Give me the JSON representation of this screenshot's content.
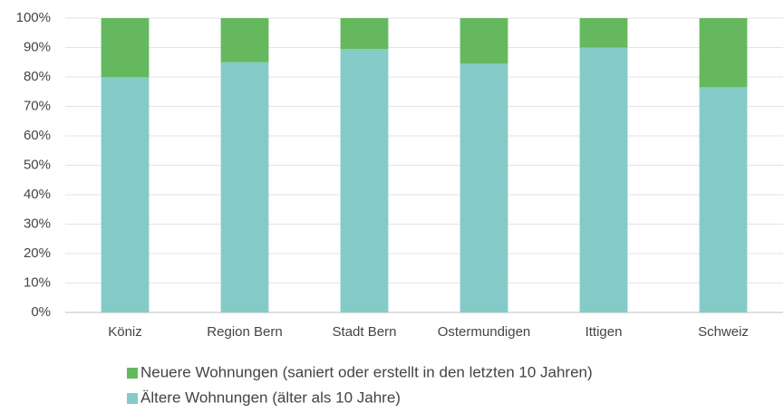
{
  "chart_data": {
    "type": "stacked_bar",
    "categories": [
      "Köniz",
      "Region Bern",
      "Stadt Bern",
      "Ostermundigen",
      "Ittigen",
      "Schweiz"
    ],
    "series": [
      {
        "name": "Ältere Wohnungen (älter als 10 Jahre)",
        "color": "#84cbc8",
        "values": [
          80,
          85,
          89.5,
          84.5,
          90,
          76.5
        ]
      },
      {
        "name": "Neuere Wohnungen (saniert oder erstellt in den letzten 10 Jahren)",
        "color": "#66b85f",
        "values": [
          20,
          15,
          10.5,
          15.5,
          10,
          23.5
        ]
      }
    ],
    "ylim": [
      0,
      100
    ],
    "yticks": [
      {
        "value": 0,
        "label": "0%"
      },
      {
        "value": 10,
        "label": "10%"
      },
      {
        "value": 20,
        "label": "20%"
      },
      {
        "value": 30,
        "label": "30%"
      },
      {
        "value": 40,
        "label": "40%"
      },
      {
        "value": 50,
        "label": "50%"
      },
      {
        "value": 60,
        "label": "60%"
      },
      {
        "value": 70,
        "label": "70%"
      },
      {
        "value": 80,
        "label": "80%"
      },
      {
        "value": 90,
        "label": "90%"
      },
      {
        "value": 100,
        "label": "100%"
      }
    ],
    "grid": true
  }
}
